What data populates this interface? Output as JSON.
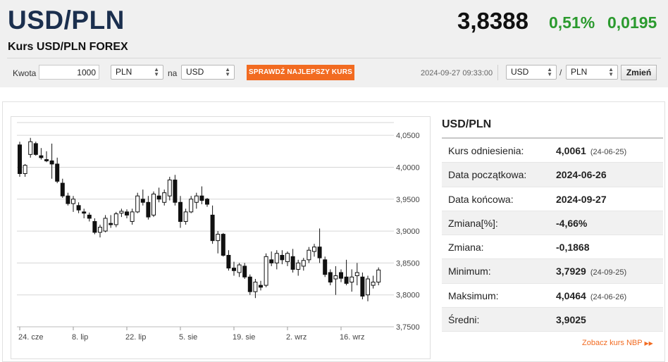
{
  "header": {
    "pair": "USD/PLN",
    "subtitle": "Kurs USD/PLN FOREX",
    "price": "3,8388",
    "change_pct": "0,51%",
    "change_abs": "0,0195",
    "change_color": "#2b9a2e"
  },
  "converter": {
    "amount_label": "Kwota",
    "amount_value": "1000",
    "from_currency": "PLN",
    "to_label": "na",
    "to_currency": "USD",
    "check_button": "SPRAWDŹ NAJLEPSZY KURS",
    "check_button_color": "#f26b21",
    "timestamp": "2024-09-27 09:33:00",
    "pair_base": "USD",
    "pair_slash": "/",
    "pair_quote": "PLN",
    "change_button": "Zmień"
  },
  "info": {
    "title": "USD/PLN",
    "rows": [
      {
        "label": "Kurs odniesienia:",
        "value": "4,0061",
        "date": "(24-06-25)"
      },
      {
        "label": "Data początkowa:",
        "value": "2024-06-26",
        "date": ""
      },
      {
        "label": "Data końcowa:",
        "value": "2024-09-27",
        "date": ""
      },
      {
        "label": "Zmiana[%]:",
        "value": "-4,66%",
        "date": ""
      },
      {
        "label": "Zmiana:",
        "value": "-0,1868",
        "date": ""
      },
      {
        "label": "Minimum:",
        "value": "3,7929",
        "date": "(24-09-25)"
      },
      {
        "label": "Maksimum:",
        "value": "4,0464",
        "date": "(24-06-26)"
      },
      {
        "label": "Średni:",
        "value": "3,9025",
        "date": ""
      }
    ],
    "nbp_link": "Zobacz kurs NBP"
  },
  "chart_data": {
    "type": "candlestick",
    "title": "",
    "xlabel": "",
    "ylabel": "",
    "ylim": [
      3.75,
      4.07
    ],
    "y_ticks": [
      "4,0500",
      "4,0000",
      "3,9500",
      "3,9000",
      "3,8500",
      "3,8000",
      "3,7500"
    ],
    "y_tick_values": [
      4.05,
      4.0,
      3.95,
      3.9,
      3.85,
      3.8,
      3.75
    ],
    "x_ticks": [
      "24. cze",
      "8. lip",
      "22. lip",
      "5. sie",
      "19. sie",
      "2. wrz",
      "16. wrz"
    ],
    "x_tick_index": [
      0,
      10,
      20,
      30,
      40,
      50,
      60
    ],
    "grid": true,
    "up_color": "#ffffff",
    "down_color": "#111111",
    "candles": [
      {
        "o": 4.035,
        "h": 4.04,
        "l": 3.985,
        "c": 3.99
      },
      {
        "o": 3.99,
        "h": 4.005,
        "l": 3.985,
        "c": 4.003
      },
      {
        "o": 4.02,
        "h": 4.046,
        "l": 4.015,
        "c": 4.04
      },
      {
        "o": 4.037,
        "h": 4.04,
        "l": 4.018,
        "c": 4.02
      },
      {
        "o": 4.018,
        "h": 4.03,
        "l": 4.012,
        "c": 4.015
      },
      {
        "o": 4.012,
        "h": 4.025,
        "l": 4.008,
        "c": 4.01
      },
      {
        "o": 4.01,
        "h": 4.037,
        "l": 3.982,
        "c": 4.005
      },
      {
        "o": 4.005,
        "h": 4.015,
        "l": 3.975,
        "c": 3.978
      },
      {
        "o": 3.975,
        "h": 3.982,
        "l": 3.952,
        "c": 3.955
      },
      {
        "o": 3.955,
        "h": 3.96,
        "l": 3.94,
        "c": 3.943
      },
      {
        "o": 3.943,
        "h": 3.955,
        "l": 3.93,
        "c": 3.95
      },
      {
        "o": 3.94,
        "h": 3.945,
        "l": 3.928,
        "c": 3.933
      },
      {
        "o": 3.93,
        "h": 3.935,
        "l": 3.92,
        "c": 3.928
      },
      {
        "o": 3.925,
        "h": 3.929,
        "l": 3.915,
        "c": 3.92
      },
      {
        "o": 3.915,
        "h": 3.92,
        "l": 3.895,
        "c": 3.898
      },
      {
        "o": 3.898,
        "h": 3.91,
        "l": 3.89,
        "c": 3.906
      },
      {
        "o": 3.9,
        "h": 3.925,
        "l": 3.898,
        "c": 3.92
      },
      {
        "o": 3.912,
        "h": 3.925,
        "l": 3.905,
        "c": 3.91
      },
      {
        "o": 3.91,
        "h": 3.93,
        "l": 3.906,
        "c": 3.927
      },
      {
        "o": 3.928,
        "h": 3.935,
        "l": 3.922,
        "c": 3.931
      },
      {
        "o": 3.93,
        "h": 3.934,
        "l": 3.92,
        "c": 3.925
      },
      {
        "o": 3.915,
        "h": 3.935,
        "l": 3.91,
        "c": 3.93
      },
      {
        "o": 3.93,
        "h": 3.96,
        "l": 3.928,
        "c": 3.955
      },
      {
        "o": 3.95,
        "h": 3.965,
        "l": 3.94,
        "c": 3.945
      },
      {
        "o": 3.945,
        "h": 3.955,
        "l": 3.918,
        "c": 3.922
      },
      {
        "o": 3.925,
        "h": 3.962,
        "l": 3.922,
        "c": 3.958
      },
      {
        "o": 3.955,
        "h": 3.968,
        "l": 3.945,
        "c": 3.95
      },
      {
        "o": 3.945,
        "h": 3.965,
        "l": 3.94,
        "c": 3.96
      },
      {
        "o": 3.955,
        "h": 3.985,
        "l": 3.948,
        "c": 3.98
      },
      {
        "o": 3.98,
        "h": 3.988,
        "l": 3.94,
        "c": 3.945
      },
      {
        "o": 3.945,
        "h": 3.955,
        "l": 3.905,
        "c": 3.915
      },
      {
        "o": 3.915,
        "h": 3.935,
        "l": 3.91,
        "c": 3.93
      },
      {
        "o": 3.93,
        "h": 3.955,
        "l": 3.928,
        "c": 3.95
      },
      {
        "o": 3.945,
        "h": 3.96,
        "l": 3.935,
        "c": 3.955
      },
      {
        "o": 3.955,
        "h": 3.97,
        "l": 3.942,
        "c": 3.948
      },
      {
        "o": 3.95,
        "h": 3.952,
        "l": 3.938,
        "c": 3.942
      },
      {
        "o": 3.925,
        "h": 3.94,
        "l": 3.88,
        "c": 3.885
      },
      {
        "o": 3.885,
        "h": 3.9,
        "l": 3.865,
        "c": 3.895
      },
      {
        "o": 3.895,
        "h": 3.897,
        "l": 3.86,
        "c": 3.862
      },
      {
        "o": 3.862,
        "h": 3.87,
        "l": 3.838,
        "c": 3.842
      },
      {
        "o": 3.842,
        "h": 3.852,
        "l": 3.83,
        "c": 3.838
      },
      {
        "o": 3.835,
        "h": 3.85,
        "l": 3.828,
        "c": 3.847
      },
      {
        "o": 3.845,
        "h": 3.85,
        "l": 3.825,
        "c": 3.828
      },
      {
        "o": 3.828,
        "h": 3.832,
        "l": 3.8,
        "c": 3.805
      },
      {
        "o": 3.805,
        "h": 3.825,
        "l": 3.795,
        "c": 3.82
      },
      {
        "o": 3.815,
        "h": 3.822,
        "l": 3.807,
        "c": 3.812
      },
      {
        "o": 3.815,
        "h": 3.865,
        "l": 3.812,
        "c": 3.86
      },
      {
        "o": 3.855,
        "h": 3.868,
        "l": 3.845,
        "c": 3.85
      },
      {
        "o": 3.85,
        "h": 3.87,
        "l": 3.84,
        "c": 3.865
      },
      {
        "o": 3.862,
        "h": 3.87,
        "l": 3.848,
        "c": 3.855
      },
      {
        "o": 3.852,
        "h": 3.868,
        "l": 3.845,
        "c": 3.865
      },
      {
        "o": 3.86,
        "h": 3.872,
        "l": 3.835,
        "c": 3.84
      },
      {
        "o": 3.84,
        "h": 3.855,
        "l": 3.83,
        "c": 3.85
      },
      {
        "o": 3.845,
        "h": 3.858,
        "l": 3.838,
        "c": 3.854
      },
      {
        "o": 3.855,
        "h": 3.875,
        "l": 3.85,
        "c": 3.87
      },
      {
        "o": 3.868,
        "h": 3.88,
        "l": 3.86,
        "c": 3.875
      },
      {
        "o": 3.875,
        "h": 3.904,
        "l": 3.85,
        "c": 3.858
      },
      {
        "o": 3.855,
        "h": 3.86,
        "l": 3.828,
        "c": 3.832
      },
      {
        "o": 3.835,
        "h": 3.84,
        "l": 3.815,
        "c": 3.82
      },
      {
        "o": 3.825,
        "h": 3.845,
        "l": 3.8,
        "c": 3.83
      },
      {
        "o": 3.835,
        "h": 3.84,
        "l": 3.82,
        "c": 3.826
      },
      {
        "o": 3.828,
        "h": 3.855,
        "l": 3.815,
        "c": 3.818
      },
      {
        "o": 3.82,
        "h": 3.84,
        "l": 3.805,
        "c": 3.828
      },
      {
        "o": 3.83,
        "h": 3.85,
        "l": 3.815,
        "c": 3.835
      },
      {
        "o": 3.828,
        "h": 3.835,
        "l": 3.793,
        "c": 3.798
      },
      {
        "o": 3.8,
        "h": 3.83,
        "l": 3.79,
        "c": 3.825
      },
      {
        "o": 3.815,
        "h": 3.83,
        "l": 3.81,
        "c": 3.82
      },
      {
        "o": 3.82,
        "h": 3.843,
        "l": 3.815,
        "c": 3.839
      }
    ]
  }
}
